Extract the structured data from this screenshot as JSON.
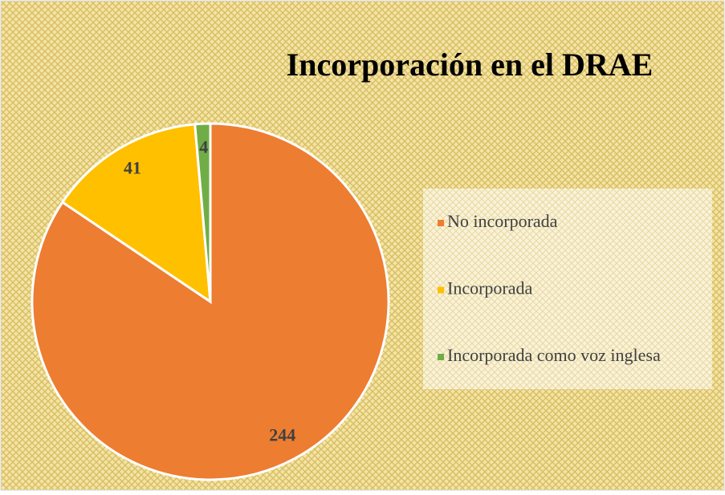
{
  "chart_data": {
    "type": "pie",
    "title": "Incorporación en el DRAE",
    "categories": [
      "No incorporada",
      "Incorporada",
      "Incorporada como voz inglesa"
    ],
    "values": [
      244,
      41,
      4
    ],
    "colors": [
      "#ED7D31",
      "#FFC000",
      "#70AD47"
    ],
    "legend": "right"
  }
}
